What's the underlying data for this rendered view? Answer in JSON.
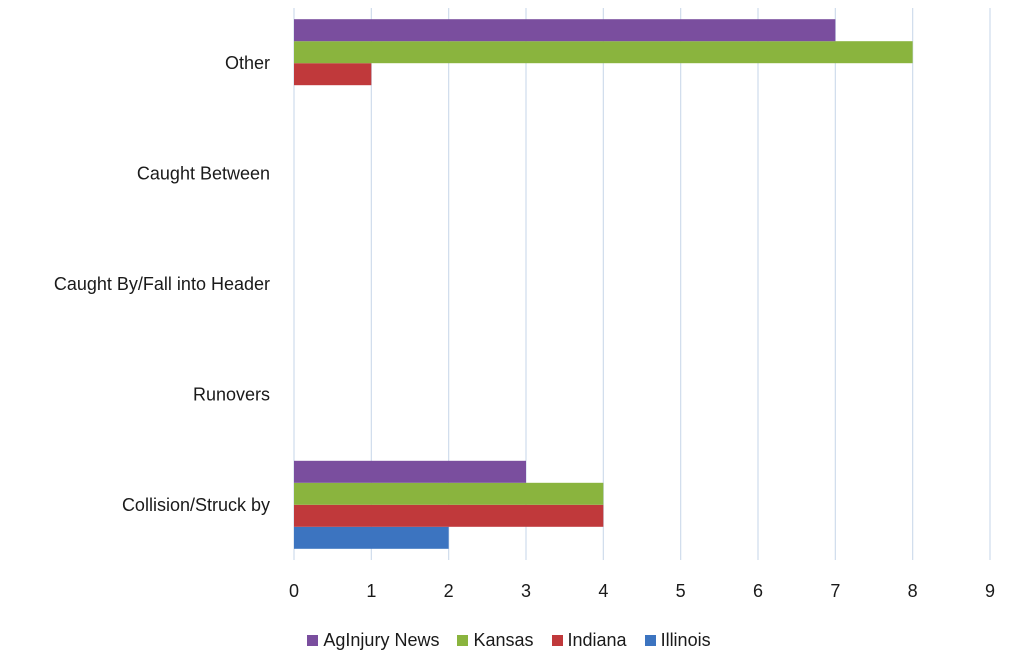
{
  "chart_data": {
    "type": "bar",
    "orientation": "horizontal",
    "categories": [
      "Collision/Struck by",
      "Runovers",
      "Caught By/Fall into Header",
      "Caught Between",
      "Other"
    ],
    "series": [
      {
        "name": "Illinois",
        "color": "#3c74c0",
        "values": [
          2,
          0,
          0,
          0,
          0
        ]
      },
      {
        "name": "Indiana",
        "color": "#c0393b",
        "values": [
          4,
          0,
          0,
          0,
          1
        ]
      },
      {
        "name": "Kansas",
        "color": "#8ab43e",
        "values": [
          4,
          0,
          0,
          0,
          8
        ]
      },
      {
        "name": "AgInjury News",
        "color": "#7a4e9e",
        "values": [
          3,
          0,
          0,
          0,
          7
        ]
      }
    ],
    "xlim": [
      0,
      9
    ],
    "xticks": [
      "0",
      "1",
      "2",
      "3",
      "4",
      "5",
      "6",
      "7",
      "8",
      "9"
    ],
    "grid": true,
    "legend_position": "bottom",
    "legend_order": [
      "AgInjury News",
      "Kansas",
      "Indiana",
      "Illinois"
    ],
    "gridline_color": "#cfdcec"
  }
}
